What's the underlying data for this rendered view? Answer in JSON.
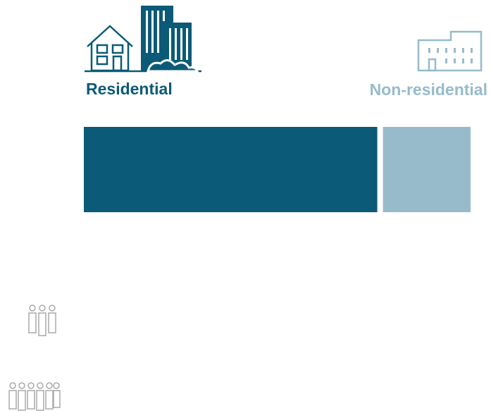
{
  "chart_data": {
    "type": "stacked-bar",
    "series": [
      {
        "name": "Residential",
        "color": "#0b5a77",
        "values": [
          77
        ]
      },
      {
        "name": "Non-residential",
        "color": "#97bbcb",
        "values": [
          23
        ]
      }
    ]
  }
}
